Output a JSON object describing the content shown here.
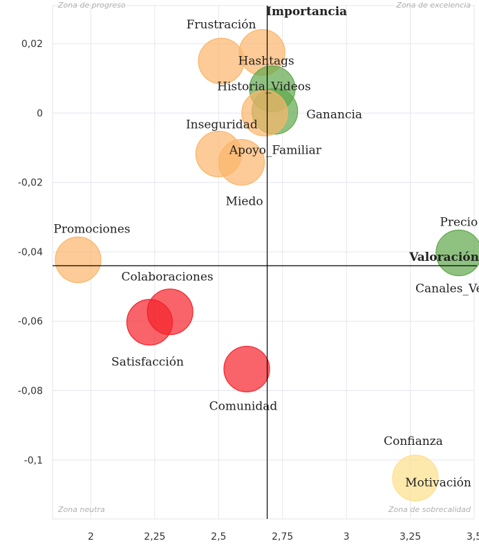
{
  "chart_data": {
    "type": "scatter",
    "subtype": "bubble",
    "title": "",
    "xlabel": "Valoración",
    "ylabel": "Importancia",
    "xlim": [
      1.85,
      3.5
    ],
    "ylim": [
      -0.117,
      0.031
    ],
    "x_ticks": [
      {
        "value": 2,
        "label": "2"
      },
      {
        "value": 2.25,
        "label": "2,25"
      },
      {
        "value": 2.5,
        "label": "2,5"
      },
      {
        "value": 2.75,
        "label": "2,75"
      },
      {
        "value": 3,
        "label": "3"
      },
      {
        "value": 3.25,
        "label": "3,25"
      },
      {
        "value": 3.5,
        "label": "3,5"
      }
    ],
    "y_ticks": [
      {
        "value": 0.02,
        "label": "0,02"
      },
      {
        "value": 0,
        "label": "0"
      },
      {
        "value": -0.02,
        "label": "-0,02"
      },
      {
        "value": -0.04,
        "label": "-0,04"
      },
      {
        "value": -0.06,
        "label": "-0,06"
      },
      {
        "value": -0.08,
        "label": "-0,08"
      },
      {
        "value": -0.1,
        "label": "-0,1"
      }
    ],
    "grid": true,
    "crosshair": {
      "x": 2.69,
      "y": -0.044
    },
    "zones": {
      "top_left": "Zona de progreso",
      "top_right": "Zona de excelencia",
      "bottom_left": "Zona neutra",
      "bottom_right": "Zona de sobrecalidad"
    },
    "colors": {
      "orange": "#fbb56b",
      "green": "#5fa84c",
      "red": "#f5222b",
      "yellow": "#fde08a"
    },
    "points": [
      {
        "label": "Frustración",
        "x": 2.51,
        "y": 0.015,
        "color": "orange"
      },
      {
        "label": "Hashtags",
        "x": 2.67,
        "y": 0.0175,
        "color": "orange"
      },
      {
        "label": "Historia_Videos",
        "x": 2.71,
        "y": 0.007,
        "color": "green"
      },
      {
        "label": "Ganancia",
        "x": 2.72,
        "y": 0.0005,
        "color": "green"
      },
      {
        "label": "Inseguridad",
        "x": 2.68,
        "y": 0.0,
        "color": "orange"
      },
      {
        "label": "Apoyo_Familiar",
        "x": 2.5,
        "y": -0.0118,
        "color": "orange"
      },
      {
        "label": "Miedo",
        "x": 2.59,
        "y": -0.0142,
        "color": "orange"
      },
      {
        "label": "Promociones",
        "x": 1.95,
        "y": -0.0423,
        "color": "orange"
      },
      {
        "label": "Precio",
        "x": 3.44,
        "y": -0.0403,
        "color": "green"
      },
      {
        "label": "Canales_Venta",
        "x": 3.44,
        "y": -0.0403,
        "color": "green"
      },
      {
        "label": "Colaboraciones",
        "x": 2.31,
        "y": -0.0573,
        "color": "red"
      },
      {
        "label": "Satisfacción",
        "x": 2.23,
        "y": -0.0603,
        "color": "red"
      },
      {
        "label": "Comunidad",
        "x": 2.61,
        "y": -0.0738,
        "color": "red"
      },
      {
        "label": "Confianza",
        "x": 3.27,
        "y": -0.1052,
        "color": "yellow"
      },
      {
        "label": "Motivación",
        "x": 3.27,
        "y": -0.1052,
        "color": "yellow"
      }
    ]
  }
}
